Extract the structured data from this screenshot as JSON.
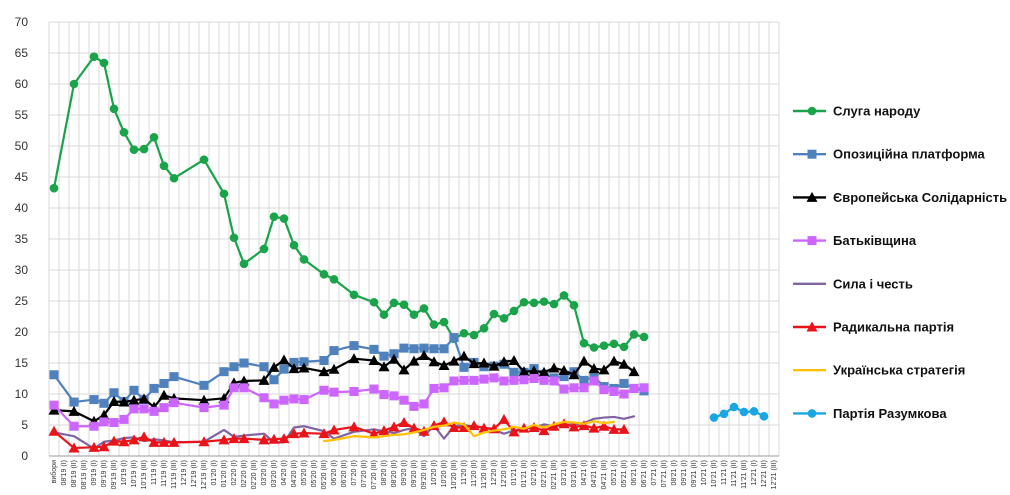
{
  "chart_data": {
    "type": "line",
    "ylim": [
      0,
      70
    ],
    "yticks": [
      0,
      5,
      10,
      15,
      20,
      25,
      30,
      35,
      40,
      45,
      50,
      55,
      60,
      65,
      70
    ],
    "grid": true,
    "legend_position": "right",
    "x": [
      "вибори",
      "08'19 (I)",
      "08'19 (II)",
      "08'19 (III)",
      "09'19 (I)",
      "09'19 (II)",
      "09'19 (III)",
      "10'19 (I)",
      "10'19 (II)",
      "10'19 (III)",
      "11'19 (I)",
      "11'19 (II)",
      "11'19 (III)",
      "12'19 (I)",
      "12'19 (II)",
      "12'19 (III)",
      "01'20 (I)",
      "01'20 (II)",
      "02'20 (I)",
      "02'20 (II)",
      "02'20 (III)",
      "03'20 (I)",
      "03'20 (II)",
      "04'20 (I)",
      "04'20 (II)",
      "05'20 (I)",
      "05'20 (II)",
      "05'20 (III)",
      "06'20 (I)",
      "06'20 (II)",
      "07'20 (I)",
      "07'20 (II)",
      "07'20 (III)",
      "08'20 (I)",
      "08'20 (II)",
      "09'20 (I)",
      "09'20 (II)",
      "09'20 (III)",
      "10'20 (I)",
      "10'20 (II)",
      "10'20 (III)",
      "11'20 (I)",
      "11'20 (II)",
      "11'20 (III)",
      "12'20 (I)",
      "12'20 (II)",
      "01'21 (I)",
      "01'21 (II)",
      "02'21 (I)",
      "02'21 (II)",
      "02'21 (III)",
      "03'21 (I)",
      "03'21 (II)",
      "04'21 (I)",
      "04'21 (II)",
      "04'21 (III)",
      "05'21 (I)",
      "05'21 (II)",
      "06'21 (I)",
      "06'21 (II)",
      "07'21 (I)",
      "07'21 (II)",
      "08'21 (I)",
      "09'21 (I)",
      "09'21 (II)",
      "10'21 (I)",
      "10'21 (II)",
      "11'21 (I)",
      "11'21 (II)",
      "11'21 (III)",
      "12'21 (I)",
      "12'21 (II)",
      "12'21 (III)"
    ],
    "series": [
      {
        "name": "Слуга народу",
        "color": "#1aa34a",
        "marker": "circle",
        "values": [
          43.2,
          null,
          60,
          null,
          64.4,
          63.4,
          56,
          52.2,
          49.4,
          49.5,
          51.4,
          46.8,
          44.8,
          null,
          null,
          47.8,
          null,
          42.3,
          35.2,
          31,
          null,
          33.4,
          38.6,
          38.3,
          34,
          31.7,
          null,
          29.3,
          28.5,
          null,
          26,
          null,
          24.8,
          22.8,
          24.7,
          24.4,
          22.8,
          23.8,
          21.2,
          21.6,
          18.9,
          19.8,
          19.5,
          20.6,
          22.9,
          22.2,
          23.4,
          24.8,
          24.7,
          24.9,
          24.5,
          25.9,
          24.3,
          18.2,
          17.5,
          17.8,
          18.1,
          17.6,
          19.6,
          19.2,
          null,
          null,
          null,
          null,
          null,
          null,
          null,
          null,
          null,
          null,
          null,
          null,
          null
        ]
      },
      {
        "name": "Опозиційна платформа",
        "color": "#4f81bd",
        "marker": "square",
        "values": [
          13.1,
          null,
          8.7,
          null,
          9.1,
          8.5,
          10.2,
          8.8,
          10.6,
          9.1,
          10.9,
          11.7,
          12.8,
          null,
          null,
          11.4,
          null,
          13.6,
          14.4,
          15,
          null,
          14.4,
          12.3,
          14,
          15.1,
          15.2,
          null,
          15.4,
          17,
          null,
          17.8,
          null,
          17.2,
          16.1,
          16.5,
          17.4,
          17.3,
          17.4,
          17.3,
          17.3,
          19.1,
          14.3,
          15.1,
          14.4,
          14.5,
          14.8,
          13.5,
          13.5,
          14.1,
          13.2,
          12.6,
          12.8,
          13.6,
          12.2,
          12.8,
          11.2,
          10.9,
          11.7,
          10.9,
          10.5,
          null,
          null,
          null,
          null,
          null,
          null,
          null,
          null,
          null,
          null,
          null,
          null,
          null
        ]
      },
      {
        "name": "Європейська Солідарність",
        "color": "#000000",
        "marker": "triangle",
        "values": [
          7.4,
          null,
          7.2,
          null,
          5.6,
          6.6,
          8.8,
          8.7,
          9,
          9.2,
          7.9,
          9.8,
          9.3,
          null,
          null,
          9,
          null,
          9.3,
          11.8,
          12.1,
          null,
          12.2,
          14.3,
          15.5,
          14.1,
          14.2,
          null,
          13.6,
          14,
          null,
          15.7,
          null,
          15.4,
          14.4,
          15.6,
          13.9,
          15.3,
          16.2,
          15.2,
          14.6,
          15.3,
          16.1,
          14.9,
          15,
          14.5,
          15.2,
          15.4,
          13.6,
          13.7,
          13.5,
          14.2,
          13.8,
          13.1,
          15.3,
          14.1,
          13.9,
          15.3,
          14.8,
          13.6,
          null,
          null,
          null,
          null,
          null,
          null,
          null,
          null,
          null,
          null,
          null,
          null,
          null,
          null
        ]
      },
      {
        "name": "Батьківщина",
        "color": "#cc66ff",
        "marker": "square",
        "values": [
          8.2,
          null,
          4.8,
          null,
          4.8,
          5.5,
          5.4,
          5.9,
          7.6,
          7.6,
          7.2,
          7.8,
          8.6,
          null,
          null,
          7.8,
          null,
          8.2,
          11,
          11,
          null,
          9.4,
          8.4,
          9,
          9.2,
          9.1,
          null,
          10.6,
          10.3,
          null,
          10.4,
          null,
          10.8,
          9.9,
          9.7,
          9,
          8,
          8.4,
          10.9,
          11,
          12.1,
          12.2,
          12.2,
          12.4,
          12.6,
          12.1,
          12.2,
          12.3,
          12.5,
          12.2,
          12.1,
          10.8,
          11,
          11,
          12.1,
          10.7,
          10.4,
          10,
          10.9,
          11,
          null,
          null,
          null,
          null,
          null,
          null,
          null,
          null,
          null,
          null,
          null,
          null,
          null
        ]
      },
      {
        "name": "Сила і честь",
        "color": "#8064a2",
        "marker": "none",
        "values": [
          3.8,
          null,
          3.2,
          null,
          1.2,
          2.3,
          2.5,
          2.9,
          3,
          2.4,
          2.7,
          2.5,
          2.2,
          null,
          null,
          2.3,
          null,
          4.2,
          3.1,
          3.3,
          null,
          3.6,
          2.2,
          2.2,
          4.6,
          4.8,
          null,
          4,
          2.8,
          null,
          3.9,
          null,
          4.3,
          4,
          3.7,
          4.2,
          4.5,
          3.2,
          4.9,
          2.8,
          4.8,
          5,
          4.7,
          4.6,
          4.2,
          3.6,
          4.1,
          4.4,
          4.6,
          5.1,
          4.8,
          5,
          5.1,
          5.3,
          6,
          6.2,
          6.3,
          6,
          6.4,
          null,
          null,
          null,
          null,
          null,
          null,
          null,
          null,
          null,
          null,
          null,
          null,
          null,
          null
        ]
      },
      {
        "name": "Радикальна партія",
        "color": "#e8141a",
        "marker": "triangle",
        "values": [
          4,
          null,
          1.3,
          null,
          1.4,
          1.5,
          2.4,
          2.3,
          2.6,
          3.1,
          2.2,
          2.2,
          2.2,
          null,
          null,
          2.3,
          null,
          2.6,
          2.8,
          2.8,
          null,
          2.6,
          2.7,
          2.8,
          3.6,
          3.7,
          null,
          3.6,
          4.2,
          null,
          4.7,
          null,
          3.6,
          4.1,
          4.7,
          5.4,
          4.5,
          4,
          4.9,
          5.5,
          4.6,
          4.6,
          4.9,
          4.5,
          4.4,
          5.9,
          3.9,
          4.5,
          4.6,
          4.1,
          4.8,
          5.2,
          4.7,
          4.9,
          4.5,
          4.8,
          4.3,
          4.3,
          null,
          null,
          null,
          null,
          null,
          null,
          null,
          null,
          null,
          null,
          null,
          null,
          null,
          null,
          null
        ]
      },
      {
        "name": "Українська стратегія",
        "color": "#ffc000",
        "marker": "none",
        "values": [
          null,
          null,
          null,
          null,
          null,
          null,
          null,
          null,
          null,
          null,
          null,
          null,
          null,
          null,
          null,
          null,
          null,
          null,
          null,
          null,
          null,
          null,
          null,
          null,
          null,
          null,
          null,
          2.4,
          2.6,
          null,
          3.2,
          null,
          3,
          3.2,
          3.4,
          3.5,
          3.8,
          4.2,
          4.7,
          4.9,
          5.4,
          5.1,
          3.2,
          3.8,
          4.1,
          4.3,
          4.7,
          4.4,
          5,
          4.6,
          5.1,
          5.5,
          5.4,
          5.2,
          5.6,
          5.3,
          5.5,
          null,
          null,
          null,
          null,
          null,
          null,
          null,
          null,
          null,
          null,
          null,
          null,
          null,
          null,
          null,
          null
        ]
      },
      {
        "name": "Партія Разумкова",
        "color": "#1aa6e3",
        "marker": "circle",
        "values": [
          null,
          null,
          null,
          null,
          null,
          null,
          null,
          null,
          null,
          null,
          null,
          null,
          null,
          null,
          null,
          null,
          null,
          null,
          null,
          null,
          null,
          null,
          null,
          null,
          null,
          null,
          null,
          null,
          null,
          null,
          null,
          null,
          null,
          null,
          null,
          null,
          null,
          null,
          null,
          null,
          null,
          null,
          null,
          null,
          null,
          null,
          null,
          null,
          null,
          null,
          null,
          null,
          null,
          null,
          null,
          null,
          null,
          null,
          null,
          null,
          null,
          null,
          null,
          null,
          null,
          null,
          6.2,
          6.8,
          7.9,
          7.1,
          7.2,
          6.4,
          null
        ]
      }
    ]
  }
}
